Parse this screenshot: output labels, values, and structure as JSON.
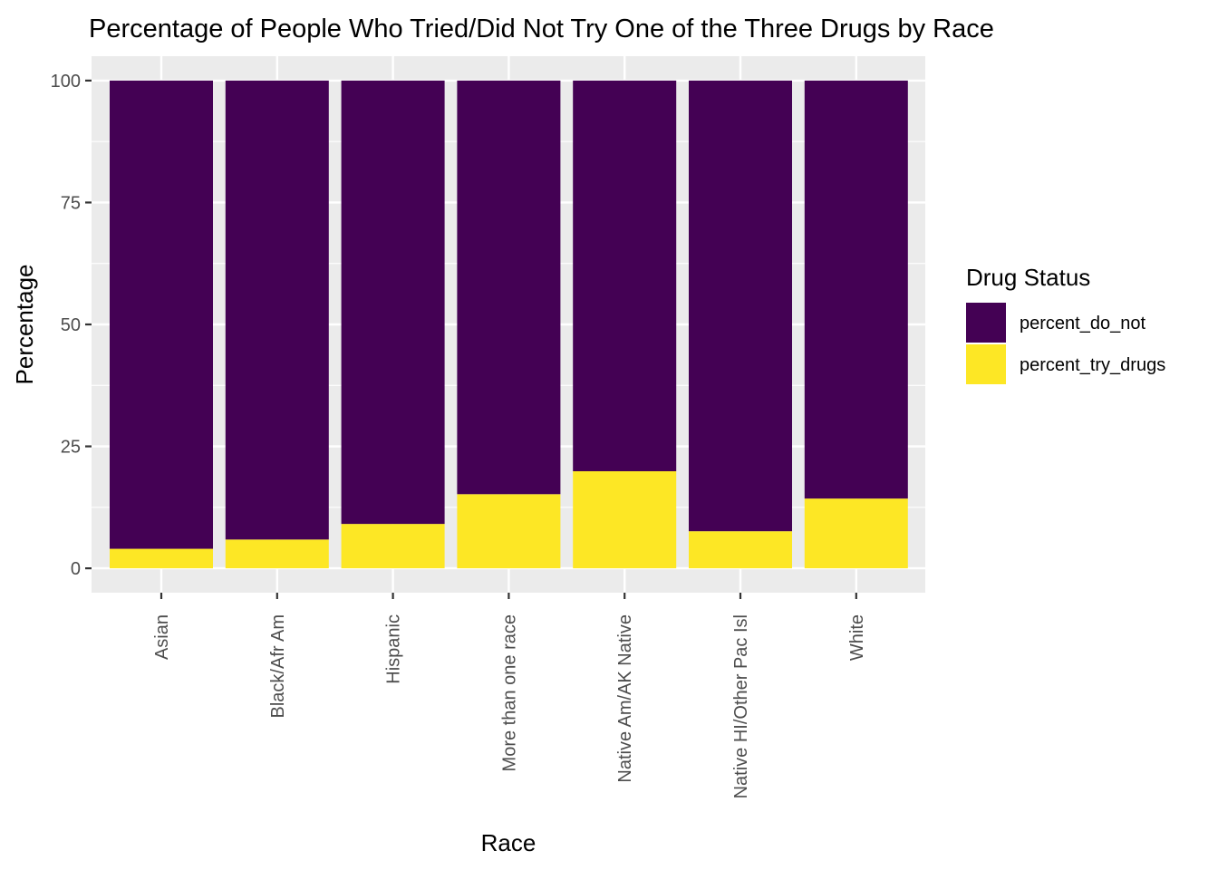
{
  "chart_data": {
    "type": "bar",
    "stacked": true,
    "title": "Percentage of People Who Tried/Did Not Try One of the Three Drugs by Race",
    "xlabel": "Race",
    "ylabel": "Percentage",
    "categories": [
      "Asian",
      "Black/Afr Am",
      "Hispanic",
      "More than one race",
      "Native Am/AK Native",
      "Native HI/Other Pac Isl",
      "White"
    ],
    "series": [
      {
        "name": "percent_do_not",
        "color": "#440154",
        "values": [
          96.0,
          94.1,
          90.9,
          84.8,
          80.1,
          92.4,
          85.7
        ]
      },
      {
        "name": "percent_try_drugs",
        "color": "#FDE725",
        "values": [
          4.0,
          5.9,
          9.1,
          15.2,
          19.9,
          7.6,
          14.3
        ]
      }
    ],
    "stack_order_bottom_to_top": [
      "percent_try_drugs",
      "percent_do_not"
    ],
    "ylim": [
      -5,
      105
    ],
    "yticks": [
      0,
      25,
      50,
      75,
      100
    ],
    "grid": true,
    "legend": {
      "title": "Drug Status",
      "placement": "right",
      "entries": [
        "percent_do_not",
        "percent_try_drugs"
      ]
    },
    "x_tick_rotation": "vertical"
  }
}
